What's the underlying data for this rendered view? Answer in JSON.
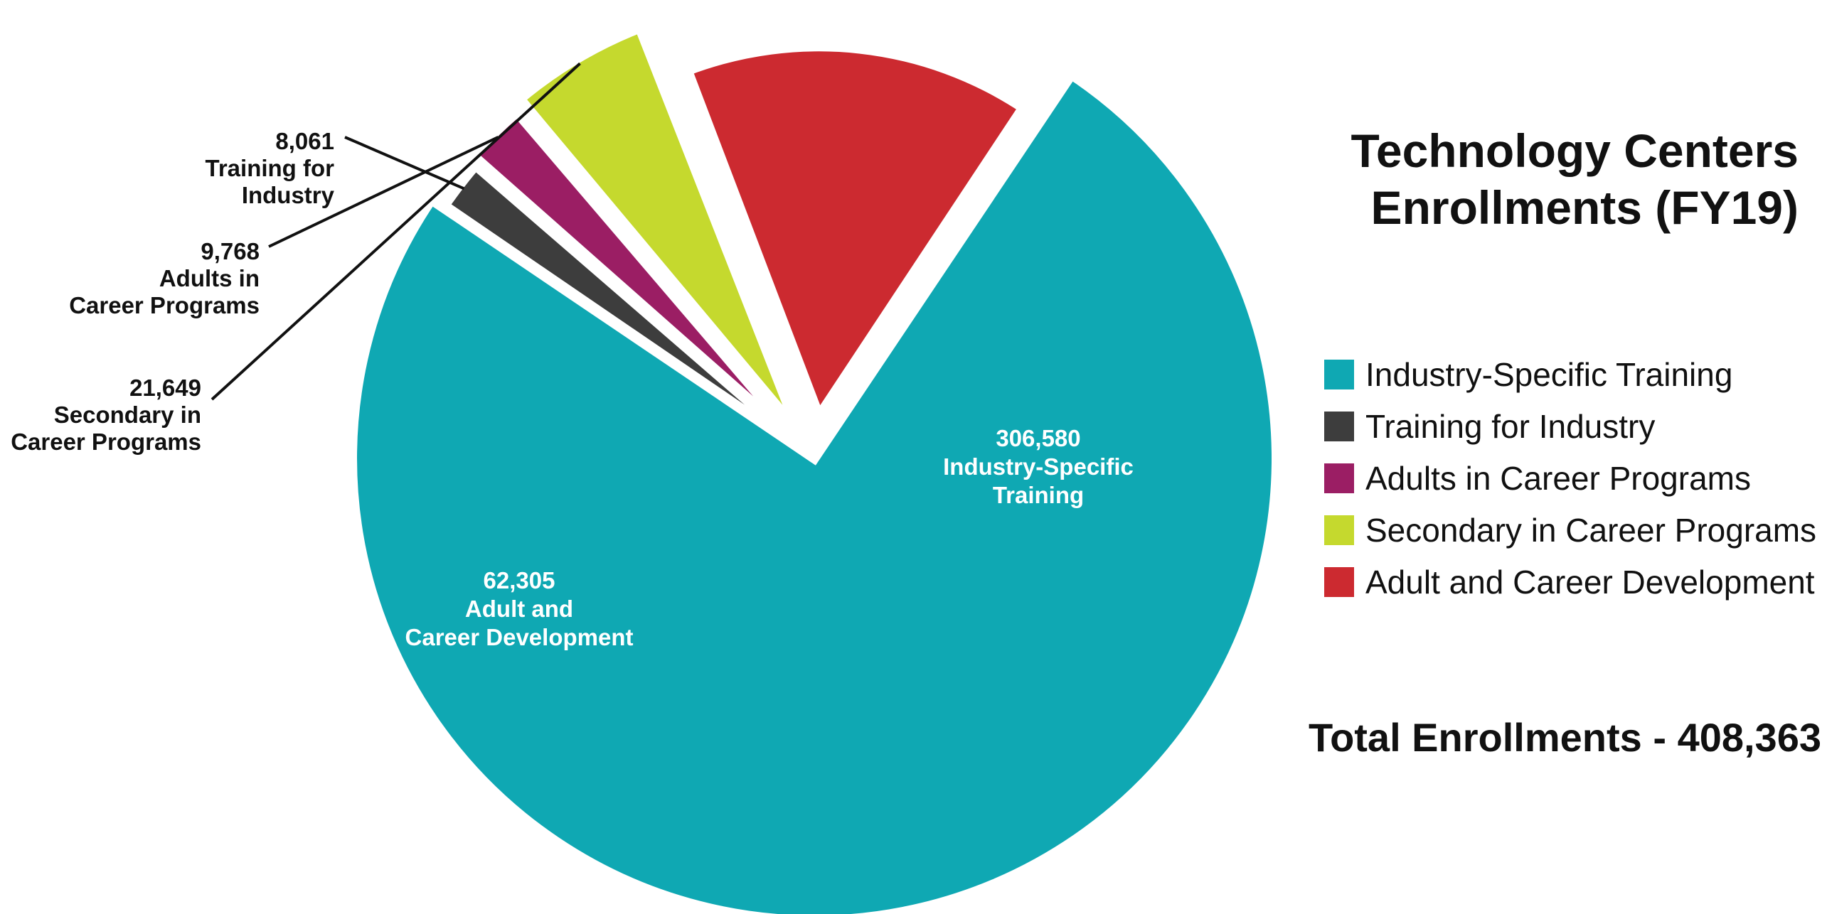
{
  "title_lines": [
    "Technology Centers",
    "Enrollments (FY19)"
  ],
  "total_text": "Total Enrollments - 408,363",
  "chart_data": {
    "type": "pie",
    "title": "Technology Centers Enrollments (FY19)",
    "slices": [
      {
        "label": "Industry-Specific Training",
        "value": 306580,
        "value_text": "306,580",
        "label_lines": [
          "Industry-Specific",
          "Training"
        ],
        "color": "#0fa8b3"
      },
      {
        "label": "Training for Industry",
        "value": 8061,
        "value_text": "8,061",
        "label_lines": [
          "Training for",
          "Industry"
        ],
        "color": "#3d3d3d"
      },
      {
        "label": "Adults in Career Programs",
        "value": 9768,
        "value_text": "9,768",
        "label_lines": [
          "Adults in",
          "Career Programs"
        ],
        "color": "#9b1e64"
      },
      {
        "label": "Secondary in Career Programs",
        "value": 21649,
        "value_text": "21,649",
        "label_lines": [
          "Secondary in",
          "Career Programs"
        ],
        "color": "#c5d92e"
      },
      {
        "label": "Adult and Career Development",
        "value": 62305,
        "value_text": "62,305",
        "label_lines": [
          "Adult and",
          "Career Development"
        ],
        "color": "#cc2a30"
      }
    ],
    "legend": [
      "Industry-Specific Training",
      "Training for Industry",
      "Adults in Career Programs",
      "Secondary in Career Programs",
      "Adult and Career Development"
    ],
    "legend_position": "right",
    "total": 408363
  }
}
